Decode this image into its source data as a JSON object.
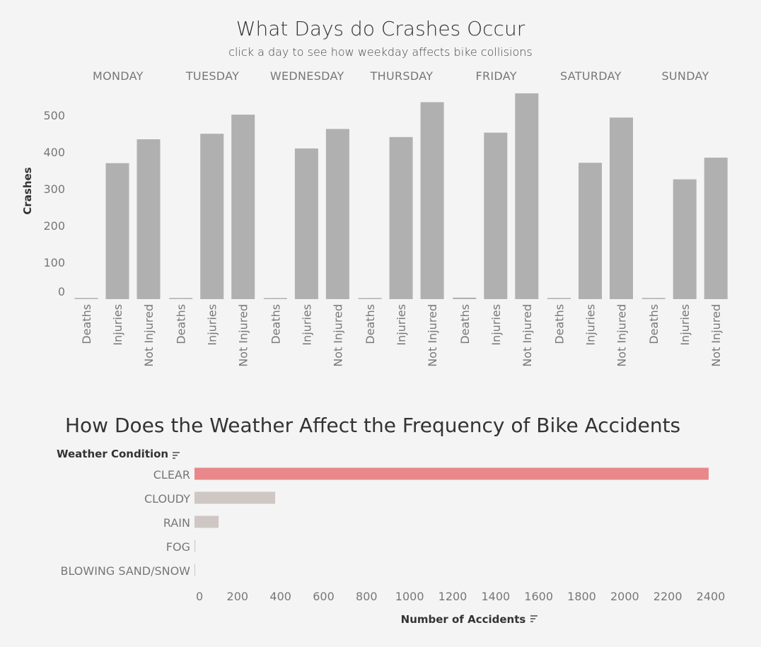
{
  "chart_data": [
    {
      "type": "bar",
      "title": "What Days do Crashes Occur",
      "subtitle": "click a day to see how weekday affects bike collisions",
      "ylabel": "Crashes",
      "ylim": [
        0,
        560
      ],
      "yticks": [
        0,
        100,
        200,
        300,
        400,
        500
      ],
      "groups": [
        "MONDAY",
        "TUESDAY",
        "WEDNESDAY",
        "THURSDAY",
        "FRIDAY",
        "SATURDAY",
        "SUNDAY"
      ],
      "categories": [
        "Deaths",
        "Injuries",
        "Not Injured"
      ],
      "values": [
        [
          3,
          370,
          435
        ],
        [
          3,
          450,
          502
        ],
        [
          2,
          410,
          463
        ],
        [
          2,
          441,
          536
        ],
        [
          4,
          453,
          560
        ],
        [
          3,
          371,
          494
        ],
        [
          3,
          326,
          385
        ]
      ],
      "bar_color": "#b0b0b0"
    },
    {
      "type": "bar",
      "orientation": "horizontal",
      "title": "How Does the Weather Affect the Frequency of Bike Accidents",
      "ylabel": "Weather Condition",
      "xlabel": "Number of Accidents",
      "xlim": [
        0,
        2400
      ],
      "xticks": [
        0,
        200,
        400,
        600,
        800,
        1000,
        1200,
        1400,
        1600,
        1800,
        2000,
        2200,
        2400
      ],
      "categories": [
        "CLEAR",
        "CLOUDY",
        "RAIN",
        "FOG",
        "BLOWING SAND/SNOW"
      ],
      "values": [
        2390,
        375,
        112,
        4,
        3
      ],
      "highlight_color": "#e8888a",
      "bar_color": "#cfc7c4"
    }
  ]
}
